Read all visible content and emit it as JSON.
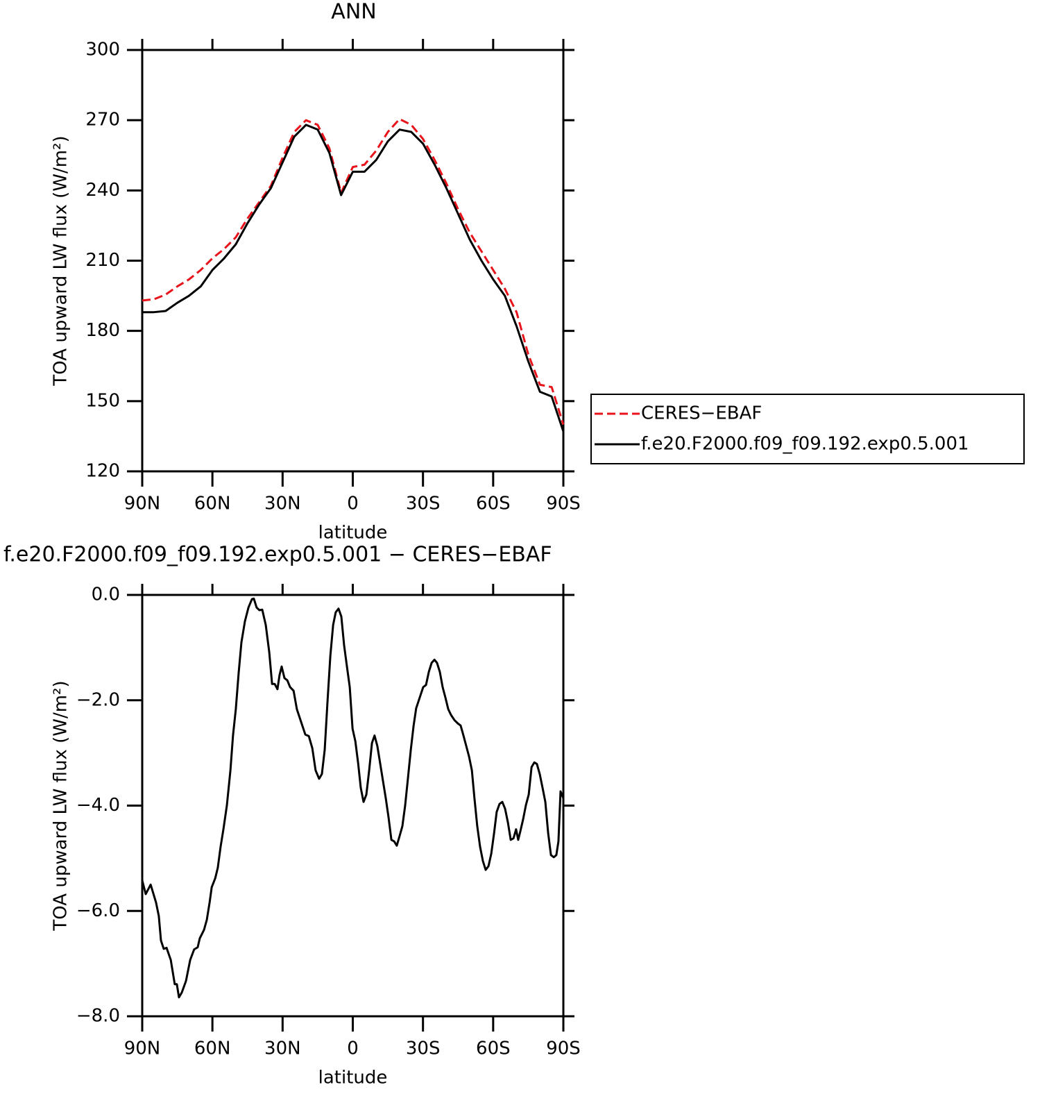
{
  "chart_data": [
    {
      "type": "line",
      "title": "ANN",
      "xlabel": "latitude",
      "ylabel": "TOA upward LW flux (W/m²)",
      "xlim": [
        90,
        -90
      ],
      "xticks": [
        {
          "value": 90,
          "label": "90N"
        },
        {
          "value": 60,
          "label": "60N"
        },
        {
          "value": 30,
          "label": "30N"
        },
        0,
        {
          "value": -30,
          "label": "30S"
        },
        {
          "value": -60,
          "label": "60S"
        },
        {
          "value": -90,
          "label": "90S"
        }
      ],
      "ylim": [
        120,
        300
      ],
      "yticks": [
        120,
        150,
        180,
        210,
        240,
        270,
        300
      ],
      "legend": "outside-right",
      "x": [
        90,
        85,
        80,
        75,
        70,
        65,
        60,
        55,
        50,
        45,
        40,
        35,
        30,
        25,
        20,
        15,
        10,
        5,
        0,
        -5,
        -10,
        -15,
        -20,
        -25,
        -30,
        -35,
        -40,
        -45,
        -50,
        -55,
        -60,
        -65,
        -70,
        -75,
        -80,
        -85,
        -90
      ],
      "series": [
        {
          "name": "CERES−EBAF",
          "color": "#e8141b",
          "dash": true,
          "values": [
            193,
            193.5,
            195.5,
            199,
            202,
            206,
            211,
            215,
            220,
            228,
            235,
            242,
            254,
            265,
            270,
            268,
            258,
            239,
            250,
            251,
            257,
            265,
            270.5,
            268,
            262,
            253,
            243,
            232,
            222,
            214,
            206,
            198,
            188,
            170,
            157,
            156,
            140
          ]
        },
        {
          "name": "f.e20.F2000.f09_f09.192.exp0.5.001",
          "color": "#000000",
          "dash": false,
          "values": [
            188,
            188,
            188.5,
            192,
            195,
            199,
            206,
            211,
            217,
            226,
            234,
            241,
            252,
            263,
            268,
            266,
            256,
            238,
            248,
            248,
            253,
            261,
            266,
            265,
            260,
            251,
            241,
            230,
            219,
            210,
            202,
            195,
            182,
            167,
            154,
            152,
            137
          ]
        }
      ]
    },
    {
      "type": "line",
      "title": "f.e20.F2000.f09_f09.192.exp0.5.001 − CERES−EBAF",
      "xlabel": "latitude",
      "ylabel": "TOA upward LW flux (W/m²)",
      "xlim": [
        90,
        -90
      ],
      "xticks": [
        {
          "value": 90,
          "label": "90N"
        },
        {
          "value": 60,
          "label": "60N"
        },
        {
          "value": 30,
          "label": "30N"
        },
        0,
        {
          "value": -30,
          "label": "30S"
        },
        {
          "value": -60,
          "label": "60S"
        },
        {
          "value": -90,
          "label": "90S"
        }
      ],
      "ylim": [
        -8,
        0
      ],
      "yticks": [
        {
          "value": -8,
          "label": "−8.0"
        },
        {
          "value": -6,
          "label": "−6.0"
        },
        {
          "value": -4,
          "label": "−4.0"
        },
        {
          "value": -2,
          "label": "−2.0"
        },
        {
          "value": 0,
          "label": "0.0"
        }
      ],
      "x": [
        90,
        88.5,
        86.4,
        84.1,
        82.9,
        82.0,
        80.8,
        79.6,
        77.8,
        76.1,
        75.2,
        74.3,
        73.1,
        71.3,
        69.5,
        67.8,
        66.3,
        65.4,
        63.6,
        62.4,
        61.2,
        60.3,
        58.8,
        57.7,
        56.5,
        55.3,
        53.8,
        52.3,
        51.2,
        50.0,
        48.8,
        47.6,
        46.1,
        44.6,
        43.1,
        42.3,
        41.1,
        39.9,
        38.7,
        37.2,
        35.7,
        34.5,
        33.4,
        32.2,
        31.3,
        30.4,
        29.2,
        28.0,
        26.8,
        25.3,
        23.9,
        22.1,
        20.3,
        18.8,
        17.3,
        15.9,
        14.4,
        13.2,
        12.0,
        10.8,
        9.6,
        8.4,
        7.3,
        6.1,
        4.9,
        3.7,
        2.5,
        1.3,
        0.1,
        -1.1,
        -2.3,
        -3.4,
        -4.6,
        -5.8,
        -7.0,
        -8.2,
        -9.3,
        -10.5,
        -11.7,
        -12.9,
        -14.1,
        -15.3,
        -16.5,
        -17.7,
        -18.8,
        -20.0,
        -21.2,
        -22.4,
        -23.6,
        -24.8,
        -26.0,
        -27.1,
        -28.6,
        -30.1,
        -31.3,
        -32.5,
        -33.7,
        -34.9,
        -36.0,
        -37.2,
        -38.4,
        -39.6,
        -40.8,
        -42.0,
        -43.5,
        -44.9,
        -46.1,
        -47.3,
        -48.5,
        -49.7,
        -50.9,
        -52.0,
        -53.2,
        -54.4,
        -55.6,
        -56.8,
        -58.0,
        -59.2,
        -60.4,
        -61.5,
        -62.7,
        -63.9,
        -65.1,
        -66.3,
        -67.5,
        -68.7,
        -69.8,
        -70.7,
        -71.6,
        -72.8,
        -74.0,
        -75.2,
        -76.4,
        -77.6,
        -78.7,
        -79.9,
        -81.1,
        -82.3,
        -83.5,
        -84.7,
        -85.9,
        -87.0,
        -87.9,
        -88.8,
        -90
      ],
      "series": [
        {
          "color": "#000000",
          "dash": false,
          "values": [
            -5.42,
            -5.68,
            -5.5,
            -5.84,
            -6.1,
            -6.56,
            -6.72,
            -6.7,
            -6.93,
            -7.39,
            -7.39,
            -7.64,
            -7.55,
            -7.33,
            -6.93,
            -6.73,
            -6.69,
            -6.52,
            -6.36,
            -6.17,
            -5.84,
            -5.55,
            -5.38,
            -5.18,
            -4.78,
            -4.45,
            -3.99,
            -3.33,
            -2.67,
            -2.17,
            -1.49,
            -0.9,
            -0.5,
            -0.24,
            -0.08,
            -0.07,
            -0.24,
            -0.29,
            -0.28,
            -0.57,
            -1.09,
            -1.69,
            -1.69,
            -1.79,
            -1.52,
            -1.36,
            -1.58,
            -1.62,
            -1.75,
            -1.82,
            -2.17,
            -2.41,
            -2.65,
            -2.68,
            -2.91,
            -3.33,
            -3.49,
            -3.4,
            -2.94,
            -2.02,
            -1.16,
            -0.57,
            -0.33,
            -0.26,
            -0.41,
            -0.96,
            -1.36,
            -1.75,
            -2.54,
            -2.78,
            -3.2,
            -3.66,
            -3.93,
            -3.79,
            -3.33,
            -2.81,
            -2.67,
            -2.87,
            -3.2,
            -3.53,
            -3.86,
            -4.23,
            -4.65,
            -4.68,
            -4.76,
            -4.58,
            -4.39,
            -3.99,
            -3.47,
            -2.94,
            -2.48,
            -2.15,
            -1.95,
            -1.75,
            -1.71,
            -1.46,
            -1.29,
            -1.23,
            -1.29,
            -1.46,
            -1.75,
            -1.95,
            -2.17,
            -2.28,
            -2.38,
            -2.44,
            -2.48,
            -2.67,
            -2.87,
            -3.07,
            -3.33,
            -3.86,
            -4.39,
            -4.78,
            -5.05,
            -5.22,
            -5.15,
            -4.91,
            -4.52,
            -4.12,
            -3.97,
            -3.93,
            -4.06,
            -4.32,
            -4.65,
            -4.62,
            -4.45,
            -4.65,
            -4.49,
            -4.26,
            -3.99,
            -3.79,
            -3.27,
            -3.18,
            -3.21,
            -3.4,
            -3.66,
            -3.93,
            -4.52,
            -4.94,
            -4.98,
            -4.94,
            -4.68,
            -3.73,
            -3.86
          ]
        }
      ]
    }
  ]
}
